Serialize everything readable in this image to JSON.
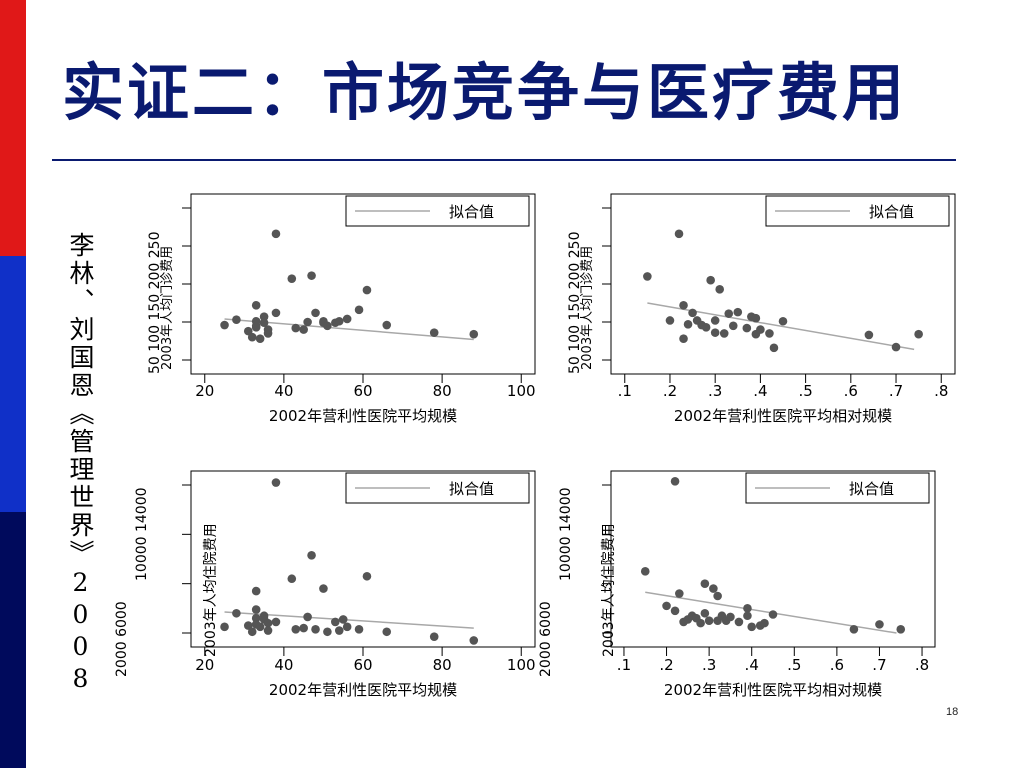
{
  "slide": {
    "title": "实证二：市场竞争与医疗费用",
    "citation": "李林、刘国恩《管理世界》2008",
    "page_number": "18"
  },
  "colors": {
    "title": "#0a1a70",
    "point": "#555555",
    "fit_line": "#a8a8a8",
    "side_red": "#e01818",
    "side_blue": "#1030c8",
    "side_navy": "#000a5c"
  },
  "chart_data": [
    {
      "type": "scatter",
      "xlabel": "2002年营利性医院平均规模",
      "ylabel": "",
      "xticks": [
        "20",
        "40",
        "60",
        "80",
        "100"
      ],
      "xlim": [
        20,
        100
      ],
      "yticks": [
        "50",
        "100",
        "150",
        "200",
        "250"
      ],
      "ylim": [
        50,
        250
      ],
      "ylabel_overlap_text": "2003年人均门诊费用",
      "legend": "拟合值",
      "fit_line": [
        [
          25,
          104
        ],
        [
          88,
          77
        ]
      ],
      "points": [
        [
          25,
          96
        ],
        [
          28,
          103
        ],
        [
          31,
          88
        ],
        [
          32,
          80
        ],
        [
          33,
          122
        ],
        [
          33,
          95
        ],
        [
          33,
          93
        ],
        [
          33,
          101
        ],
        [
          34,
          78
        ],
        [
          35,
          107
        ],
        [
          35,
          99
        ],
        [
          36,
          85
        ],
        [
          36,
          90
        ],
        [
          38,
          112
        ],
        [
          38,
          216
        ],
        [
          42,
          157
        ],
        [
          43,
          92
        ],
        [
          45,
          90
        ],
        [
          46,
          100
        ],
        [
          47,
          161
        ],
        [
          48,
          112
        ],
        [
          50,
          101
        ],
        [
          50,
          99
        ],
        [
          51,
          95
        ],
        [
          53,
          99
        ],
        [
          54,
          101
        ],
        [
          56,
          104
        ],
        [
          59,
          116
        ],
        [
          61,
          142
        ],
        [
          66,
          96
        ],
        [
          78,
          86
        ],
        [
          88,
          84
        ]
      ]
    },
    {
      "type": "scatter",
      "xlabel": "2002年营利性医院平均相对规模",
      "ylabel": "",
      "xticks": [
        ".1",
        ".2",
        ".3",
        ".4",
        ".5",
        ".6",
        ".7",
        ".8"
      ],
      "xlim": [
        0.1,
        0.8
      ],
      "yticks": [
        "50",
        "100",
        "150",
        "200",
        "250"
      ],
      "ylim": [
        50,
        250
      ],
      "ylabel_overlap_text": "2003年人均门诊费用",
      "legend": "拟合值",
      "fit_line": [
        [
          0.15,
          125
        ],
        [
          0.74,
          64
        ]
      ],
      "points": [
        [
          0.15,
          160
        ],
        [
          0.2,
          102
        ],
        [
          0.22,
          216
        ],
        [
          0.23,
          122
        ],
        [
          0.23,
          78
        ],
        [
          0.24,
          97
        ],
        [
          0.25,
          112
        ],
        [
          0.26,
          102
        ],
        [
          0.27,
          96
        ],
        [
          0.28,
          93
        ],
        [
          0.29,
          155
        ],
        [
          0.3,
          102
        ],
        [
          0.3,
          86
        ],
        [
          0.31,
          143
        ],
        [
          0.32,
          85
        ],
        [
          0.33,
          111
        ],
        [
          0.34,
          95
        ],
        [
          0.35,
          113
        ],
        [
          0.37,
          92
        ],
        [
          0.38,
          107
        ],
        [
          0.39,
          105
        ],
        [
          0.39,
          84
        ],
        [
          0.4,
          90
        ],
        [
          0.42,
          85
        ],
        [
          0.43,
          66
        ],
        [
          0.45,
          101
        ],
        [
          0.64,
          83
        ],
        [
          0.7,
          67
        ],
        [
          0.75,
          84
        ]
      ]
    },
    {
      "type": "scatter",
      "xlabel": "2002年营利性医院平均规模",
      "ylabel": "2003年人均住院费用",
      "xticks": [
        "20",
        "40",
        "60",
        "80",
        "100"
      ],
      "xlim": [
        20,
        100
      ],
      "yticks": [
        "2000",
        "6000",
        "10000",
        "14000"
      ],
      "ylim": [
        2000,
        14000
      ],
      "legend": "拟合值",
      "fit_line": [
        [
          25,
          3700
        ],
        [
          88,
          2400
        ]
      ],
      "points": [
        [
          25,
          2500
        ],
        [
          28,
          3600
        ],
        [
          31,
          2600
        ],
        [
          32,
          2100
        ],
        [
          33,
          5400
        ],
        [
          33,
          3900
        ],
        [
          33,
          3200
        ],
        [
          33,
          2700
        ],
        [
          34,
          2500
        ],
        [
          35,
          3400
        ],
        [
          35,
          3100
        ],
        [
          36,
          2800
        ],
        [
          36,
          2200
        ],
        [
          38,
          2900
        ],
        [
          38,
          14200
        ],
        [
          42,
          6400
        ],
        [
          43,
          2300
        ],
        [
          45,
          2400
        ],
        [
          46,
          3300
        ],
        [
          47,
          8300
        ],
        [
          48,
          2300
        ],
        [
          50,
          5600
        ],
        [
          51,
          2100
        ],
        [
          53,
          2900
        ],
        [
          54,
          2200
        ],
        [
          55,
          3100
        ],
        [
          56,
          2500
        ],
        [
          59,
          2300
        ],
        [
          61,
          6600
        ],
        [
          66,
          2100
        ],
        [
          78,
          1700
        ],
        [
          88,
          1400
        ]
      ]
    },
    {
      "type": "scatter",
      "xlabel": "2002年营利性医院平均相对规模",
      "ylabel": "2003年人均住院费用",
      "xticks": [
        ".1",
        ".2",
        ".3",
        ".4",
        ".5",
        ".6",
        ".7",
        ".8"
      ],
      "xlim": [
        0.1,
        0.8
      ],
      "yticks": [
        "2000",
        "6000",
        "10000",
        "14000"
      ],
      "ylim": [
        2000,
        14000
      ],
      "legend": "拟合值",
      "fit_line": [
        [
          0.15,
          5300
        ],
        [
          0.74,
          2000
        ]
      ],
      "points": [
        [
          0.15,
          7000
        ],
        [
          0.2,
          4200
        ],
        [
          0.22,
          14300
        ],
        [
          0.22,
          3800
        ],
        [
          0.23,
          5200
        ],
        [
          0.24,
          2900
        ],
        [
          0.25,
          3100
        ],
        [
          0.26,
          3400
        ],
        [
          0.27,
          3200
        ],
        [
          0.28,
          2800
        ],
        [
          0.29,
          6000
        ],
        [
          0.29,
          3600
        ],
        [
          0.3,
          3000
        ],
        [
          0.31,
          5600
        ],
        [
          0.32,
          3000
        ],
        [
          0.32,
          5000
        ],
        [
          0.33,
          3400
        ],
        [
          0.34,
          3000
        ],
        [
          0.35,
          3300
        ],
        [
          0.37,
          2900
        ],
        [
          0.39,
          4000
        ],
        [
          0.39,
          3400
        ],
        [
          0.4,
          2500
        ],
        [
          0.42,
          2600
        ],
        [
          0.43,
          2800
        ],
        [
          0.45,
          3500
        ],
        [
          0.64,
          2300
        ],
        [
          0.7,
          2700
        ],
        [
          0.75,
          2300
        ]
      ]
    }
  ]
}
